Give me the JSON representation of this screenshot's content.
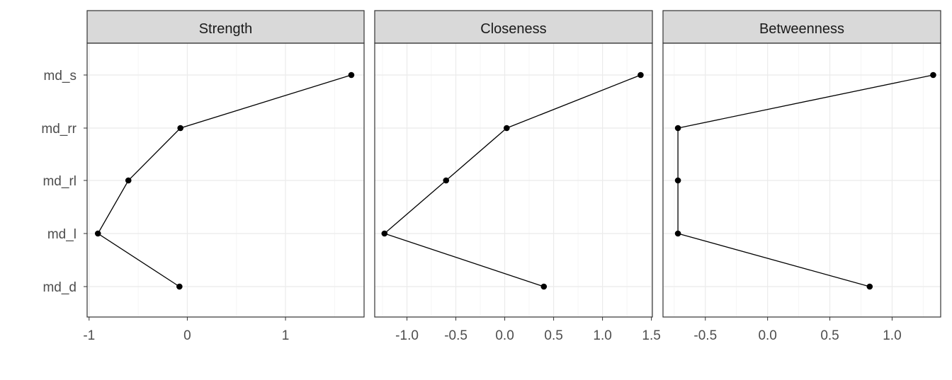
{
  "chart_data": {
    "type": "line",
    "orientation": "horizontal-values",
    "categories": [
      "md_s",
      "md_rr",
      "md_rl",
      "md_l",
      "md_d"
    ],
    "grid": true,
    "legend": "none",
    "colors": {
      "line": "#000000",
      "point": "#000000",
      "panel_border": "#333333",
      "strip_fill": "#d9d9d9",
      "grid_major": "#ebebeb",
      "grid_minor": "#f5f5f5",
      "tick_label": "#4d4d4d"
    },
    "panels": [
      {
        "title": "Strength",
        "xlim": [
          -1.02,
          1.8
        ],
        "ticks": [
          -1,
          0,
          1
        ],
        "tick_labels": [
          "-1",
          "0",
          "1"
        ],
        "values": [
          1.67,
          -0.07,
          -0.6,
          -0.91,
          -0.08
        ]
      },
      {
        "title": "Closeness",
        "xlim": [
          -1.33,
          1.51
        ],
        "ticks": [
          -1.0,
          -0.5,
          0.0,
          0.5,
          1.0,
          1.5
        ],
        "tick_labels": [
          "-1.0",
          "-0.5",
          "0.0",
          "0.5",
          "1.0",
          "1.5"
        ],
        "values": [
          1.39,
          0.02,
          -0.6,
          -1.23,
          0.4
        ]
      },
      {
        "title": "Betweenness",
        "xlim": [
          -0.84,
          1.39
        ],
        "ticks": [
          -0.5,
          0.0,
          0.5,
          1.0
        ],
        "tick_labels": [
          "-0.5",
          "0.0",
          "0.5",
          "1.0"
        ],
        "values": [
          1.33,
          -0.72,
          -0.72,
          -0.72,
          0.82
        ]
      }
    ]
  }
}
